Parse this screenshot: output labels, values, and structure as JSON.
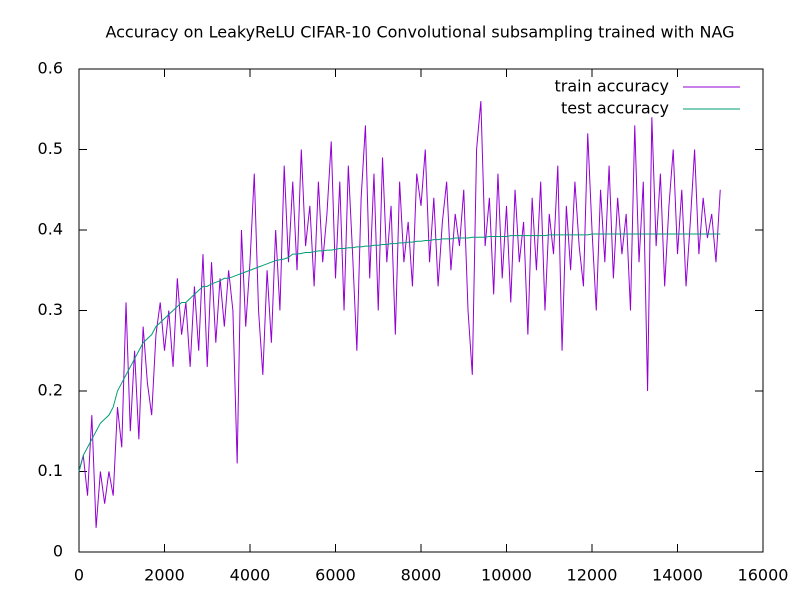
{
  "chart_data": {
    "type": "line",
    "title": "Accuracy on LeakyReLU CIFAR-10 Convolutional subsampling trained with NAG",
    "x": [
      0,
      100,
      200,
      300,
      400,
      500,
      600,
      700,
      800,
      900,
      1000,
      1100,
      1200,
      1300,
      1400,
      1500,
      1600,
      1700,
      1800,
      1900,
      2000,
      2100,
      2200,
      2300,
      2400,
      2500,
      2600,
      2700,
      2800,
      2900,
      3000,
      3100,
      3200,
      3300,
      3400,
      3500,
      3600,
      3700,
      3800,
      3900,
      4000,
      4100,
      4200,
      4300,
      4400,
      4500,
      4600,
      4700,
      4800,
      4900,
      5000,
      5100,
      5200,
      5300,
      5400,
      5500,
      5600,
      5700,
      5800,
      5900,
      6000,
      6100,
      6200,
      6300,
      6400,
      6500,
      6600,
      6700,
      6800,
      6900,
      7000,
      7100,
      7200,
      7300,
      7400,
      7500,
      7600,
      7700,
      7800,
      7900,
      8000,
      8100,
      8200,
      8300,
      8400,
      8500,
      8600,
      8700,
      8800,
      8900,
      9000,
      9100,
      9200,
      9300,
      9400,
      9500,
      9600,
      9700,
      9800,
      9900,
      10000,
      10100,
      10200,
      10300,
      10400,
      10500,
      10600,
      10700,
      10800,
      10900,
      11000,
      11100,
      11200,
      11300,
      11400,
      11500,
      11600,
      11700,
      11800,
      11900,
      12000,
      12100,
      12200,
      12300,
      12400,
      12500,
      12600,
      12700,
      12800,
      12900,
      13000,
      13100,
      13200,
      13300,
      13400,
      13500,
      13600,
      13700,
      13800,
      13900,
      14000,
      14100,
      14200,
      14300,
      14400,
      14500,
      14600,
      14700,
      14800,
      14900,
      15000
    ],
    "series": [
      {
        "name": "train accuracy",
        "color": "#9400d3",
        "values": [
          0.1,
          0.12,
          0.07,
          0.17,
          0.03,
          0.1,
          0.06,
          0.1,
          0.07,
          0.18,
          0.13,
          0.31,
          0.15,
          0.25,
          0.14,
          0.28,
          0.21,
          0.17,
          0.27,
          0.31,
          0.25,
          0.3,
          0.23,
          0.34,
          0.27,
          0.31,
          0.23,
          0.33,
          0.25,
          0.37,
          0.23,
          0.36,
          0.26,
          0.34,
          0.28,
          0.35,
          0.3,
          0.11,
          0.4,
          0.28,
          0.36,
          0.47,
          0.3,
          0.22,
          0.35,
          0.26,
          0.4,
          0.3,
          0.48,
          0.36,
          0.46,
          0.35,
          0.5,
          0.38,
          0.43,
          0.33,
          0.46,
          0.36,
          0.42,
          0.51,
          0.34,
          0.46,
          0.3,
          0.48,
          0.37,
          0.25,
          0.44,
          0.53,
          0.34,
          0.47,
          0.3,
          0.49,
          0.36,
          0.43,
          0.27,
          0.46,
          0.36,
          0.41,
          0.33,
          0.47,
          0.43,
          0.5,
          0.36,
          0.44,
          0.33,
          0.41,
          0.46,
          0.35,
          0.42,
          0.38,
          0.45,
          0.3,
          0.22,
          0.5,
          0.56,
          0.38,
          0.44,
          0.32,
          0.47,
          0.34,
          0.43,
          0.31,
          0.45,
          0.36,
          0.41,
          0.27,
          0.44,
          0.35,
          0.46,
          0.3,
          0.42,
          0.37,
          0.48,
          0.25,
          0.43,
          0.35,
          0.46,
          0.38,
          0.33,
          0.52,
          0.4,
          0.3,
          0.45,
          0.36,
          0.48,
          0.34,
          0.44,
          0.37,
          0.42,
          0.3,
          0.53,
          0.36,
          0.46,
          0.2,
          0.54,
          0.38,
          0.47,
          0.33,
          0.43,
          0.5,
          0.37,
          0.45,
          0.33,
          0.41,
          0.5,
          0.37,
          0.44,
          0.39,
          0.42,
          0.36,
          0.45
        ]
      },
      {
        "name": "test accuracy",
        "color": "#009e73",
        "values": [
          0.1,
          0.12,
          0.13,
          0.14,
          0.15,
          0.16,
          0.165,
          0.17,
          0.18,
          0.2,
          0.21,
          0.22,
          0.23,
          0.24,
          0.25,
          0.26,
          0.265,
          0.27,
          0.28,
          0.285,
          0.29,
          0.295,
          0.3,
          0.305,
          0.31,
          0.31,
          0.315,
          0.32,
          0.325,
          0.33,
          0.33,
          0.333,
          0.335,
          0.337,
          0.34,
          0.34,
          0.342,
          0.344,
          0.346,
          0.348,
          0.35,
          0.352,
          0.354,
          0.356,
          0.358,
          0.36,
          0.362,
          0.363,
          0.364,
          0.366,
          0.37,
          0.37,
          0.371,
          0.372,
          0.372,
          0.373,
          0.374,
          0.374,
          0.375,
          0.375,
          0.376,
          0.377,
          0.377,
          0.378,
          0.378,
          0.379,
          0.379,
          0.38,
          0.38,
          0.381,
          0.381,
          0.382,
          0.382,
          0.383,
          0.383,
          0.384,
          0.384,
          0.385,
          0.385,
          0.386,
          0.386,
          0.387,
          0.387,
          0.388,
          0.388,
          0.389,
          0.389,
          0.389,
          0.39,
          0.39,
          0.39,
          0.39,
          0.391,
          0.391,
          0.391,
          0.391,
          0.392,
          0.392,
          0.392,
          0.392,
          0.392,
          0.393,
          0.393,
          0.393,
          0.393,
          0.393,
          0.393,
          0.393,
          0.393,
          0.393,
          0.394,
          0.394,
          0.394,
          0.394,
          0.394,
          0.394,
          0.394,
          0.394,
          0.394,
          0.394,
          0.395,
          0.395,
          0.395,
          0.395,
          0.395,
          0.395,
          0.395,
          0.395,
          0.395,
          0.395,
          0.395,
          0.395,
          0.395,
          0.395,
          0.395,
          0.395,
          0.395,
          0.395,
          0.395,
          0.395,
          0.395,
          0.395,
          0.395,
          0.395,
          0.395,
          0.395,
          0.395,
          0.395,
          0.395,
          0.395,
          0.395
        ]
      }
    ],
    "xlim": [
      0,
      16000
    ],
    "xticks": [
      0,
      2000,
      4000,
      6000,
      8000,
      10000,
      12000,
      14000,
      16000
    ],
    "ylim": [
      0,
      0.6
    ],
    "yticks": [
      0,
      0.1,
      0.2,
      0.3,
      0.4,
      0.5,
      0.6
    ],
    "legend": "top-right",
    "grid": false
  }
}
